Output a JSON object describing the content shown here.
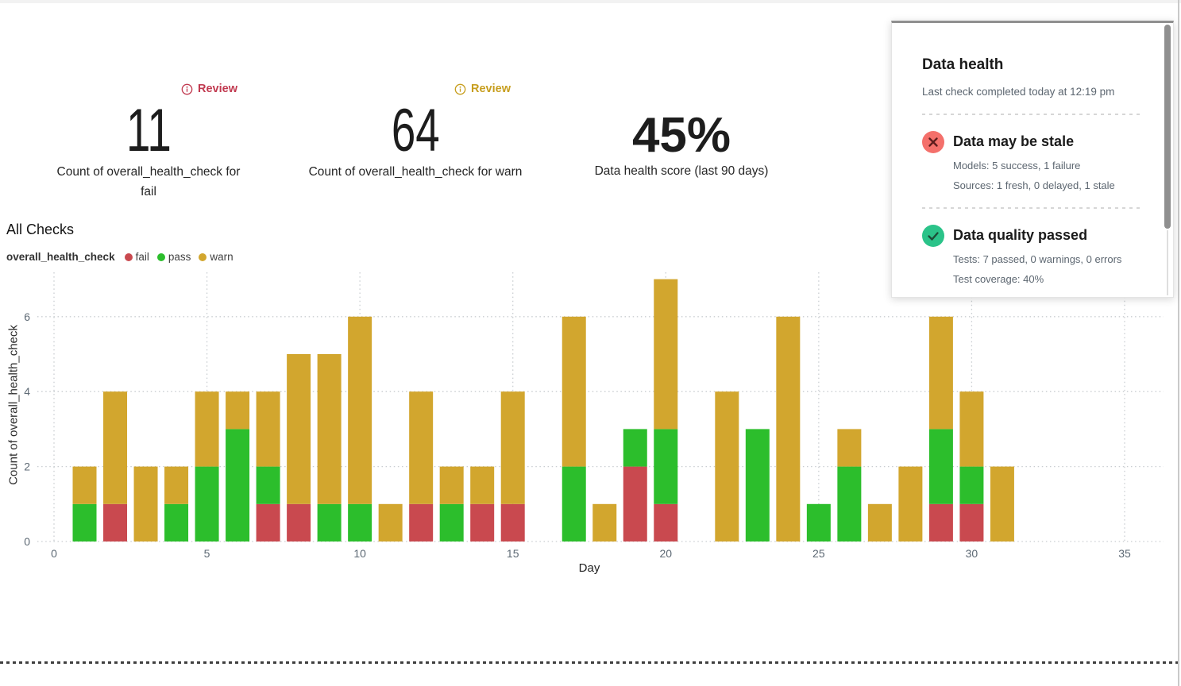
{
  "metrics": {
    "fail": {
      "review_label": "Review",
      "accent": "#C13A50",
      "value": "11",
      "caption": "Count of overall_health_check for fail"
    },
    "warn": {
      "review_label": "Review",
      "accent": "#C79E1E",
      "value": "64",
      "caption": "Count of overall_health_check for warn"
    },
    "score": {
      "value": "45%",
      "caption": "Data health score (last 90 days)"
    }
  },
  "chart_data": {
    "type": "bar",
    "stacked": true,
    "title": "All Checks",
    "series_label": "overall_health_check",
    "xlabel": "Day",
    "ylabel": "Count of overall_health_check",
    "xlim": [
      0,
      35
    ],
    "ylim": [
      0,
      7
    ],
    "x_ticks": [
      0,
      5,
      10,
      15,
      20,
      25,
      30,
      35
    ],
    "y_ticks": [
      0,
      2,
      4,
      6
    ],
    "grid": "dotted",
    "legend_position": "top-left",
    "x": [
      1,
      2,
      3,
      4,
      5,
      6,
      7,
      8,
      9,
      10,
      11,
      12,
      13,
      14,
      15,
      16,
      17,
      18,
      19,
      20,
      21,
      22,
      23,
      24,
      25,
      26,
      27,
      28,
      29,
      30,
      31
    ],
    "series": [
      {
        "name": "fail",
        "color": "#C9494F",
        "values": [
          0,
          1,
          0,
          0,
          0,
          0,
          1,
          1,
          0,
          0,
          0,
          1,
          0,
          1,
          1,
          0,
          0,
          0,
          2,
          1,
          0,
          0,
          0,
          0,
          0,
          0,
          0,
          0,
          1,
          1,
          0
        ]
      },
      {
        "name": "pass",
        "color": "#2CBE2C",
        "values": [
          1,
          0,
          0,
          1,
          2,
          3,
          1,
          0,
          1,
          1,
          0,
          0,
          1,
          0,
          0,
          0,
          2,
          0,
          1,
          2,
          0,
          0,
          3,
          0,
          1,
          2,
          0,
          0,
          2,
          1,
          0
        ]
      },
      {
        "name": "warn",
        "color": "#D2A62E",
        "values": [
          1,
          3,
          2,
          1,
          2,
          1,
          2,
          4,
          4,
          5,
          1,
          3,
          1,
          1,
          3,
          0,
          4,
          1,
          0,
          4,
          0,
          4,
          0,
          6,
          0,
          1,
          1,
          2,
          3,
          2,
          2
        ]
      }
    ]
  },
  "health_panel": {
    "title": "Data health",
    "last_check": "Last check completed today at 12:19 pm",
    "sections": [
      {
        "icon": "x-circle",
        "icon_color": "#F4706B",
        "icon_mark_color": "#5E1D1D",
        "title": "Data may be stale",
        "lines": [
          "Models: 5 success, 1 failure",
          "Sources: 1 fresh, 0 delayed, 1 stale"
        ]
      },
      {
        "icon": "check-circle",
        "icon_color": "#2BC389",
        "icon_mark_color": "#1D4D38",
        "title": "Data quality passed",
        "lines": [
          "Tests: 7 passed, 0 warnings, 0 errors",
          "Test coverage: 40%"
        ]
      }
    ]
  }
}
